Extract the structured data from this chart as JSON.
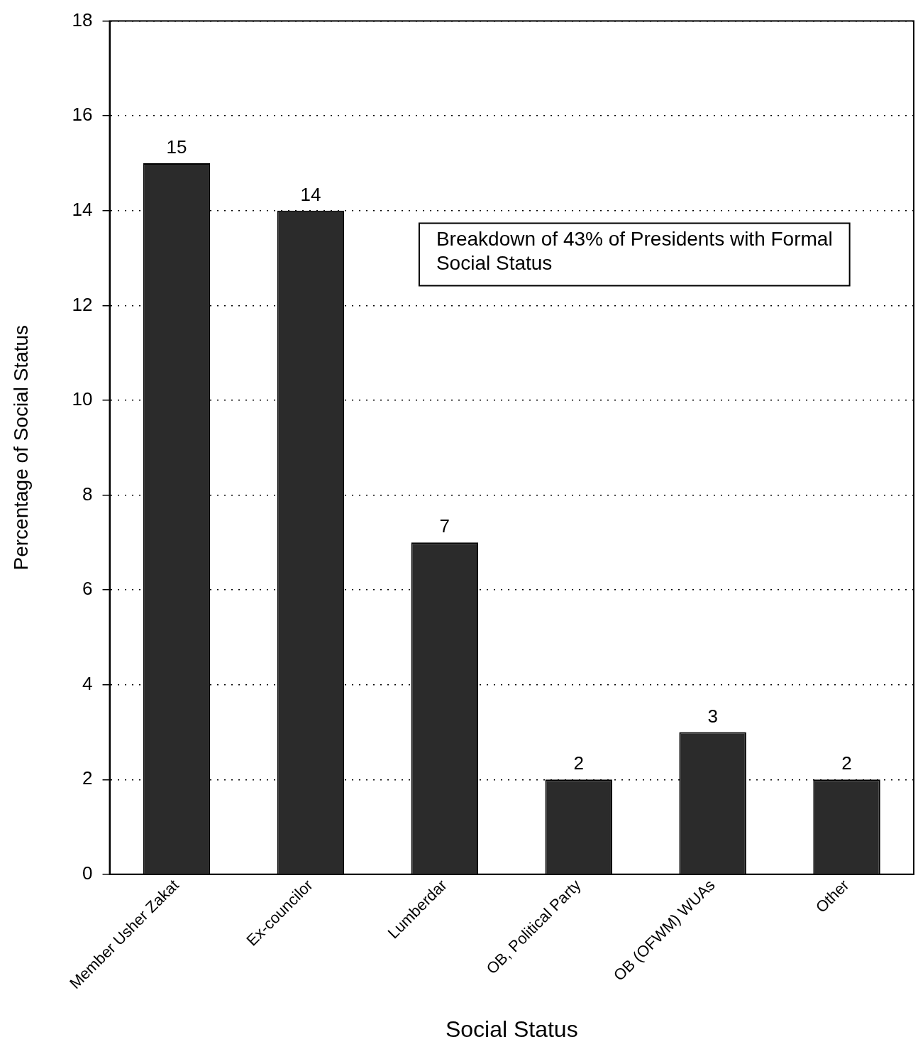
{
  "chart_data": {
    "type": "bar",
    "categories": [
      "Member Usher Zakat",
      "Ex-councilor",
      "Lumberdar",
      "OB, Political Party",
      "OB (OFWM) WUAs",
      "Other"
    ],
    "values": [
      15,
      14,
      7,
      2,
      3,
      2
    ],
    "color": "#2b2b2b",
    "xlabel": "Social Status",
    "ylabel": "Percentage of Social Status",
    "ylim": [
      0,
      18
    ],
    "yticks": [
      0,
      2,
      4,
      6,
      8,
      10,
      12,
      14,
      16,
      18
    ],
    "grid": "y",
    "legend": false,
    "data_labels": true,
    "annotations": [
      "Breakdown of 43% of Presidents with Formal Social Status"
    ]
  }
}
